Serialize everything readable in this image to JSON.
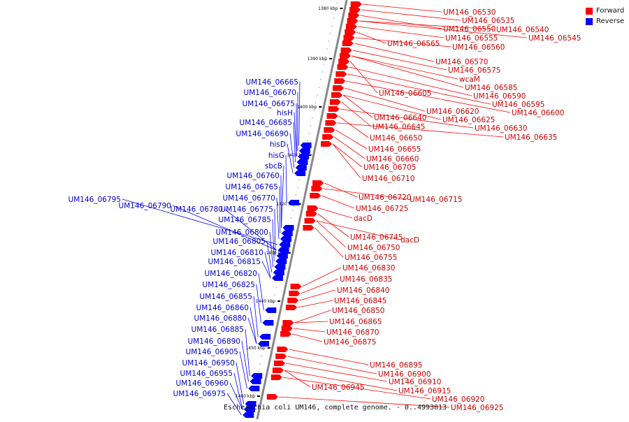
{
  "colors": {
    "forward": "#ff0000",
    "reverse": "#0000ff",
    "axis": "#888888"
  },
  "legend": [
    {
      "label": "Forward",
      "color": "#ff0000"
    },
    {
      "label": "Reverse",
      "color": "#0000ff"
    }
  ],
  "caption": "Escherichia coli UM146, complete genome. - 0..4993013",
  "axis_ticks": [
    {
      "label": "1380 kbp",
      "kbp": 1380
    },
    {
      "label": "1390 kbp",
      "kbp": 1390
    },
    {
      "label": "1400 kbp",
      "kbp": 1400
    },
    {
      "label": "1410 kbp",
      "kbp": 1410
    },
    {
      "label": "1420 kbp",
      "kbp": 1420
    },
    {
      "label": "1430 kbp",
      "kbp": 1430
    },
    {
      "label": "1440 kbp",
      "kbp": 1440
    },
    {
      "label": "1450 kbp",
      "kbp": 1450
    },
    {
      "label": "1460 kbp",
      "kbp": 1460
    }
  ],
  "forward_genes": [
    "UM146_06530",
    "UM146_06535",
    "UM146_06550",
    "UM146_06540",
    "UM146_06545",
    "UM146_06555",
    "UM146_06565",
    "UM146_06560",
    "UM146_06570",
    "UM146_06575",
    "wcaM",
    "UM146_06585",
    "UM146_06605",
    "UM146_06590",
    "UM146_06595",
    "UM146_06600",
    "UM146_06620",
    "UM146_06640",
    "UM146_06625",
    "UM146_06645",
    "UM146_06630",
    "UM146_06650",
    "UM146_06635",
    "UM146_06655",
    "UM146_06660",
    "UM146_06705",
    "UM146_06710",
    "UM146_06720",
    "UM146_06715",
    "UM146_06725",
    "dacD",
    "UM146_06745",
    "dacD",
    "UM146_06750",
    "UM146_06755",
    "UM146_06830",
    "UM146_06835",
    "UM146_06840",
    "UM146_06845",
    "UM146_06850",
    "UM146_06865",
    "UM146_06870",
    "UM146_06875",
    "UM146_06895",
    "UM146_06900",
    "UM146_06910",
    "UM146_06945",
    "UM146_06915",
    "UM146_06920",
    "UM146_06925"
  ],
  "reverse_genes": [
    "UM146_06665",
    "UM146_06670",
    "UM146_06675",
    "hisH",
    "UM146_06685",
    "UM146_06690",
    "hisD",
    "hisG",
    "sbcB",
    "UM146_06760",
    "UM146_06765",
    "UM146_06770",
    "UM146_06795",
    "UM146_06790",
    "UM146_06780",
    "UM146_06775",
    "UM146_06785",
    "UM146_06800",
    "UM146_06805",
    "UM146_06810",
    "UM146_06815",
    "UM146_06820",
    "UM146_06825",
    "UM146_06855",
    "UM146_06860",
    "UM146_06880",
    "UM146_06885",
    "UM146_06890",
    "UM146_06905",
    "UM146_06950",
    "UM146_06955",
    "UM146_06960",
    "UM146_06975"
  ]
}
